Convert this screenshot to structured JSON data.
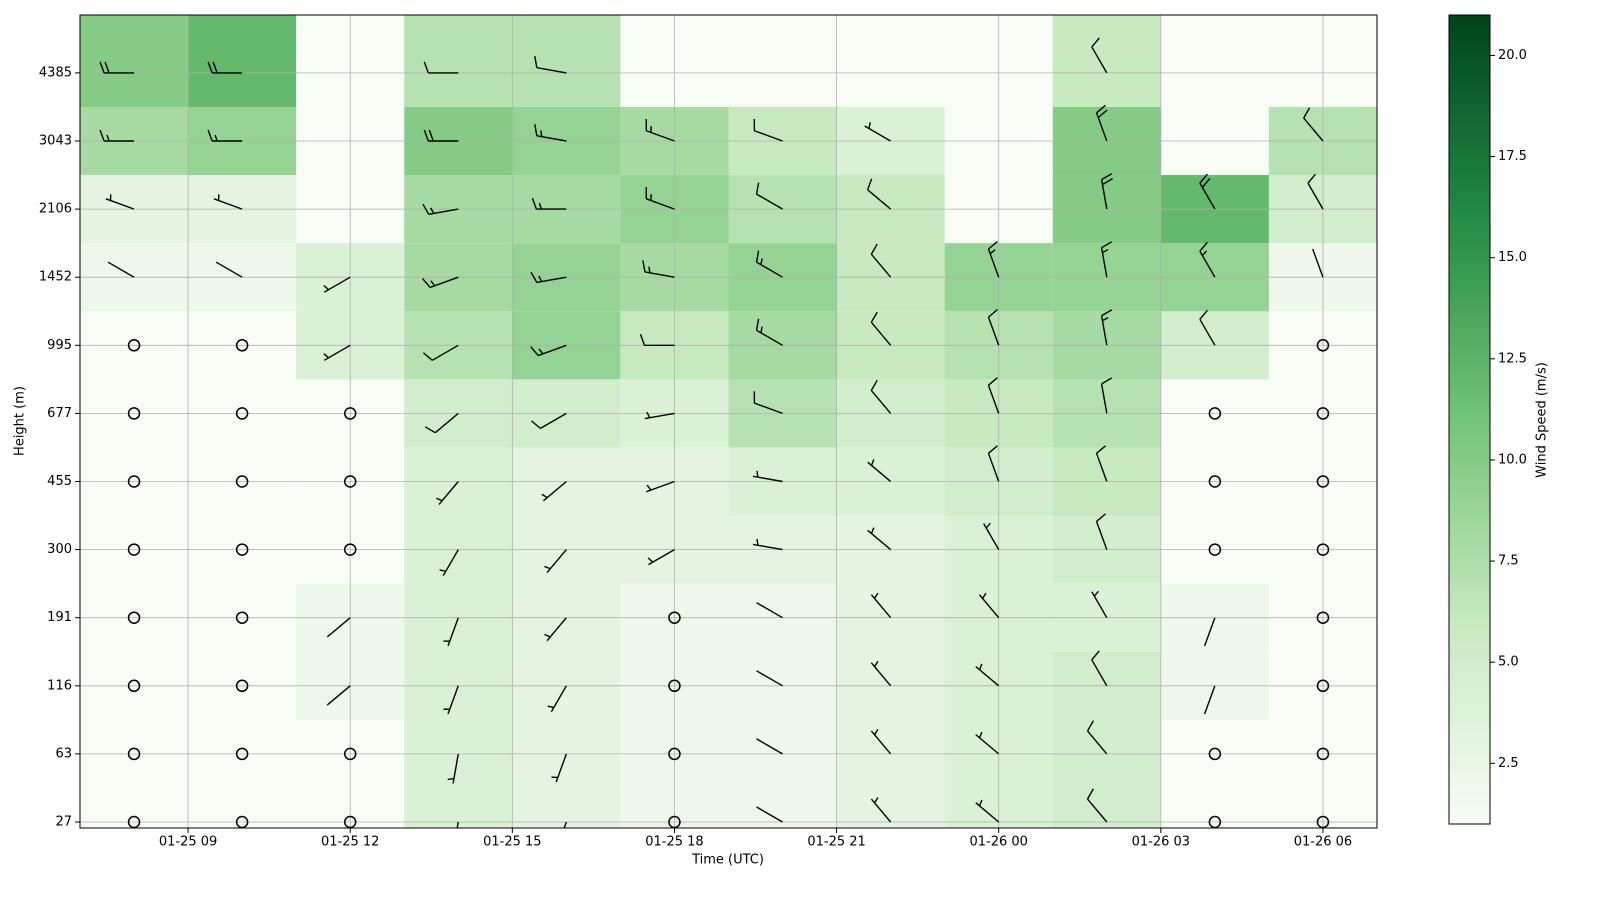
{
  "chart_data": {
    "type": "wind-barb-heatmap",
    "xlabel": "Time (UTC)",
    "ylabel": "Height (m)",
    "colorbar_label": "Wind Speed (m/s)",
    "xlim": [
      "01-25 07",
      "01-26 07"
    ],
    "xticks": [
      "01-25 09",
      "01-25 12",
      "01-25 15",
      "01-25 18",
      "01-25 21",
      "01-26 00",
      "01-26 03",
      "01-26 06"
    ],
    "yticks": [
      27,
      63,
      116,
      191,
      300,
      455,
      677,
      995,
      1452,
      2106,
      3043,
      4385
    ],
    "x": [
      "01-25 08",
      "01-25 10",
      "01-25 12",
      "01-25 14",
      "01-25 16",
      "01-25 18",
      "01-25 20",
      "01-25 22",
      "01-26 00",
      "01-26 02",
      "01-26 04",
      "01-26 06"
    ],
    "speed": [
      [
        1,
        1,
        1,
        4,
        3,
        2,
        2,
        3,
        4,
        5,
        1,
        1
      ],
      [
        1,
        1,
        1,
        4,
        3,
        2,
        2,
        3,
        4,
        5,
        1,
        1
      ],
      [
        1,
        1,
        2,
        4,
        3,
        2,
        2,
        3,
        4,
        5,
        2,
        1
      ],
      [
        1,
        1,
        2,
        4,
        3,
        2,
        2,
        3,
        4,
        4,
        2,
        1
      ],
      [
        1,
        1,
        1,
        4,
        3,
        3,
        3,
        3,
        4,
        5,
        1,
        1
      ],
      [
        1,
        1,
        1,
        4,
        3,
        3,
        4,
        4,
        5,
        6,
        1,
        1
      ],
      [
        1,
        1,
        1,
        5,
        5,
        4,
        7,
        5,
        6,
        7,
        1,
        1
      ],
      [
        1,
        1,
        4,
        7,
        9,
        6,
        8,
        6,
        7,
        8,
        5,
        1
      ],
      [
        2,
        2,
        4,
        8,
        9,
        8,
        9,
        6,
        9,
        9,
        9,
        2
      ],
      [
        3,
        3,
        null,
        8,
        8,
        9,
        7,
        6,
        null,
        10,
        12,
        5
      ],
      [
        8,
        9,
        null,
        10,
        9,
        8,
        6,
        4,
        null,
        10,
        null,
        7
      ],
      [
        10,
        12,
        null,
        7,
        7,
        null,
        null,
        null,
        null,
        6,
        null,
        null
      ]
    ],
    "direction": [
      [
        null,
        null,
        null,
        190,
        200,
        null,
        300,
        320,
        310,
        320,
        null,
        null
      ],
      [
        null,
        null,
        null,
        190,
        200,
        null,
        300,
        320,
        310,
        320,
        null,
        null
      ],
      [
        null,
        null,
        230,
        200,
        210,
        null,
        300,
        320,
        310,
        330,
        200,
        null
      ],
      [
        null,
        null,
        230,
        200,
        220,
        null,
        300,
        320,
        320,
        330,
        200,
        null
      ],
      [
        null,
        null,
        null,
        210,
        220,
        240,
        280,
        310,
        330,
        340,
        null,
        null
      ],
      [
        null,
        null,
        null,
        220,
        230,
        250,
        280,
        310,
        340,
        340,
        null,
        null
      ],
      [
        null,
        null,
        null,
        230,
        240,
        260,
        290,
        320,
        340,
        350,
        null,
        null
      ],
      [
        null,
        null,
        240,
        240,
        250,
        270,
        300,
        320,
        340,
        350,
        330,
        null
      ],
      [
        300,
        300,
        240,
        250,
        260,
        280,
        300,
        320,
        340,
        350,
        330,
        340
      ],
      [
        290,
        290,
        null,
        260,
        270,
        290,
        300,
        310,
        null,
        350,
        330,
        330
      ],
      [
        270,
        270,
        null,
        270,
        280,
        290,
        290,
        300,
        null,
        340,
        null,
        320
      ],
      [
        270,
        270,
        null,
        270,
        280,
        null,
        null,
        null,
        null,
        330,
        null,
        null
      ]
    ],
    "colormap": [
      "#f7fcf5",
      "#c7e9c0",
      "#74c476",
      "#238b45",
      "#00441b"
    ],
    "clim": [
      1,
      21
    ],
    "cticks": [
      2.5,
      {
        "value": 5,
        "label": "5.0"
      },
      7.5,
      {
        "value": 10,
        "label": "10.0"
      },
      12.5,
      {
        "value": 15,
        "label": "15.0"
      },
      17.5,
      {
        "value": 20,
        "label": "20.0"
      }
    ],
    "grid": true
  }
}
